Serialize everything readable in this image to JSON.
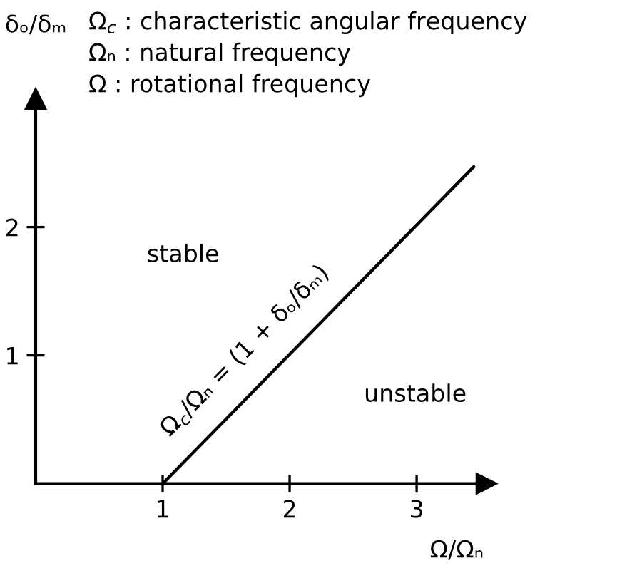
{
  "chart_data": {
    "type": "line",
    "xlabel": "Ω/Ωₙ",
    "ylabel": "δₒ/δₘ",
    "annotations": [
      "Ω$_{c}$ : characteristic angular frequency",
      "Ωₙ : natural frequency",
      "Ω : rotational frequency",
      "stable",
      "unstable",
      {
        "text": "Ω$_{c}$/Ωₙ = (1 + δₒ/δₘ)",
        "x": 1.84,
        "y": 0.85
      }
    ],
    "series": [
      {
        "x": [
          1,
          3.45
        ],
        "values": [
          0,
          2.47
        ],
        "color": "#000000"
      }
    ],
    "xlim": [
      0,
      3.55
    ],
    "ylim": [
      0,
      3.0
    ],
    "xticks": [
      1,
      2,
      3
    ],
    "yticks": [
      1,
      2
    ]
  }
}
